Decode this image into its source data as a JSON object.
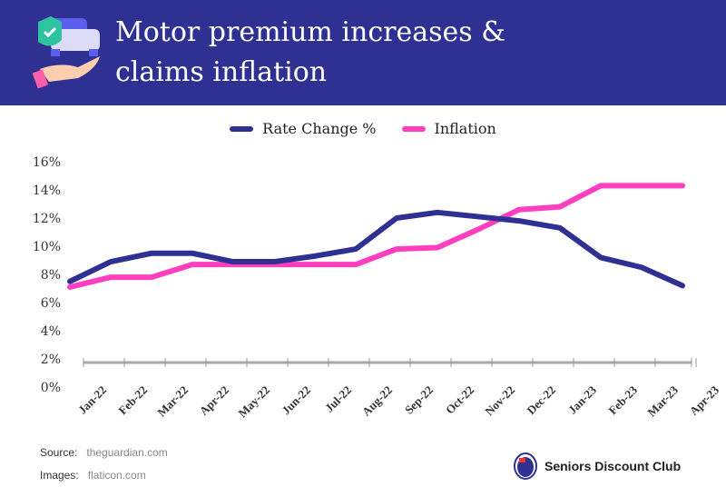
{
  "header": {
    "title_line1": "Motor premium increases &",
    "title_line2": "claims inflation"
  },
  "colors": {
    "header": "#2e3192",
    "rate": "#2e3192",
    "inflation": "#ff3fbf"
  },
  "chart_data": {
    "type": "line",
    "title": "Motor premium increases & claims inflation",
    "categories": [
      "Jan-22",
      "Feb-22",
      "Mar-22",
      "Apr-22",
      "May-22",
      "Jun-22",
      "Jul-22",
      "Aug-22",
      "Sep-22",
      "Oct-22",
      "Nov-22",
      "Dec-22",
      "Jan-23",
      "Feb-23",
      "Mar-23",
      "Apr-23"
    ],
    "series": [
      {
        "name": "Rate Change %",
        "values": [
          7.5,
          8.9,
          9.5,
          9.5,
          8.9,
          8.9,
          9.3,
          9.8,
          12.0,
          12.4,
          12.1,
          11.8,
          11.3,
          9.2,
          8.5,
          7.2
        ]
      },
      {
        "name": "Inflation",
        "values": [
          7.1,
          7.8,
          7.8,
          8.7,
          8.7,
          8.7,
          8.7,
          8.7,
          9.8,
          9.9,
          11.2,
          12.6,
          12.8,
          14.3,
          14.3,
          14.3
        ]
      }
    ],
    "yticks": [
      "0%",
      "2%",
      "4%",
      "6%",
      "8%",
      "10%",
      "12%",
      "14%",
      "16%"
    ],
    "ylim": [
      0,
      16
    ],
    "legend": "top-center",
    "grid": false
  },
  "footer": {
    "source_label": "Source:",
    "source": "theguardian.com",
    "images_label": "Images:",
    "images": "flaticon.com",
    "brand": "Seniors Discount Club"
  }
}
